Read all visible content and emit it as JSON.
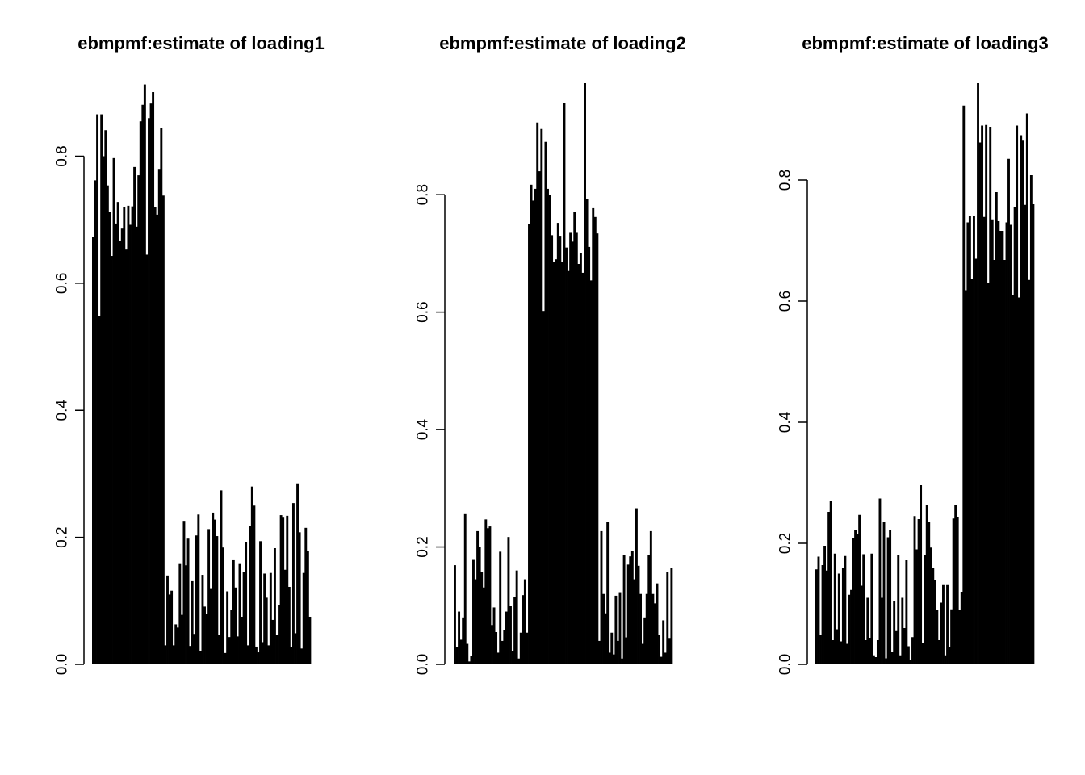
{
  "chart_data": [
    {
      "type": "bar",
      "title": "ebmpmf:estimate of loading1",
      "xlabel": "",
      "ylabel": "",
      "yticks": [
        "0.0",
        "0.2",
        "0.4",
        "0.6",
        "0.8"
      ],
      "ylim": [
        0,
        0.915
      ],
      "x_axis_drawn": false,
      "bar_color": "#000000",
      "values": [
        0.673,
        0.762,
        0.866,
        0.549,
        0.866,
        0.8,
        0.841,
        0.754,
        0.712,
        0.643,
        0.797,
        0.694,
        0.728,
        0.667,
        0.686,
        0.72,
        0.653,
        0.722,
        0.692,
        0.721,
        0.783,
        0.689,
        0.77,
        0.855,
        0.881,
        0.913,
        0.645,
        0.86,
        0.883,
        0.901,
        0.72,
        0.708,
        0.78,
        0.845,
        0.738,
        0.03,
        0.14,
        0.11,
        0.116,
        0.03,
        0.063,
        0.058,
        0.158,
        0.078,
        0.226,
        0.156,
        0.198,
        0.029,
        0.131,
        0.048,
        0.203,
        0.236,
        0.021,
        0.141,
        0.091,
        0.079,
        0.213,
        0.12,
        0.239,
        0.228,
        0.202,
        0.047,
        0.274,
        0.184,
        0.018,
        0.115,
        0.043,
        0.086,
        0.164,
        0.121,
        0.044,
        0.158,
        0.075,
        0.146,
        0.193,
        0.03,
        0.218,
        0.28,
        0.25,
        0.028,
        0.019,
        0.194,
        0.035,
        0.143,
        0.105,
        0.03,
        0.144,
        0.07,
        0.183,
        0.046,
        0.094,
        0.235,
        0.231,
        0.149,
        0.234,
        0.122,
        0.027,
        0.254,
        0.049,
        0.285,
        0.208,
        0.025,
        0.144,
        0.215,
        0.178,
        0.075
      ]
    },
    {
      "type": "bar",
      "title": "ebmpmf:estimate of loading2",
      "xlabel": "",
      "ylabel": "",
      "yticks": [
        "0.0",
        "0.2",
        "0.4",
        "0.6",
        "0.8"
      ],
      "ylim": [
        0,
        0.99
      ],
      "x_axis_drawn": false,
      "bar_color": "#000000",
      "values": [
        0.169,
        0.03,
        0.09,
        0.042,
        0.08,
        0.256,
        0.035,
        0.005,
        0.015,
        0.178,
        0.145,
        0.227,
        0.2,
        0.158,
        0.131,
        0.247,
        0.232,
        0.235,
        0.067,
        0.097,
        0.055,
        0.02,
        0.192,
        0.04,
        0.058,
        0.09,
        0.217,
        0.099,
        0.022,
        0.115,
        0.16,
        0.01,
        0.054,
        0.118,
        0.145,
        0.054,
        0.75,
        0.817,
        0.79,
        0.81,
        0.923,
        0.84,
        0.912,
        0.602,
        0.89,
        0.81,
        0.8,
        0.731,
        0.686,
        0.69,
        0.752,
        0.73,
        0.686,
        0.957,
        0.71,
        0.67,
        0.735,
        0.72,
        0.77,
        0.735,
        0.682,
        0.7,
        0.667,
        0.99,
        0.793,
        0.711,
        0.654,
        0.777,
        0.762,
        0.734,
        0.04,
        0.227,
        0.12,
        0.087,
        0.243,
        0.02,
        0.054,
        0.017,
        0.117,
        0.04,
        0.123,
        0.01,
        0.187,
        0.046,
        0.17,
        0.184,
        0.193,
        0.145,
        0.266,
        0.168,
        0.12,
        0.035,
        0.08,
        0.12,
        0.186,
        0.227,
        0.12,
        0.104,
        0.138,
        0.05,
        0.013,
        0.075,
        0.02,
        0.157,
        0.045,
        0.165
      ]
    },
    {
      "type": "bar",
      "title": "ebmpmf:estimate of loading3",
      "xlabel": "",
      "ylabel": "",
      "yticks": [
        "0.0",
        "0.2",
        "0.4",
        "0.6",
        "0.8"
      ],
      "ylim": [
        0,
        0.96
      ],
      "x_axis_drawn": false,
      "bar_color": "#000000",
      "values": [
        0.157,
        0.178,
        0.048,
        0.164,
        0.196,
        0.155,
        0.252,
        0.27,
        0.04,
        0.183,
        0.058,
        0.15,
        0.038,
        0.16,
        0.179,
        0.034,
        0.115,
        0.123,
        0.208,
        0.222,
        0.215,
        0.247,
        0.13,
        0.182,
        0.04,
        0.11,
        0.044,
        0.183,
        0.015,
        0.012,
        0.04,
        0.274,
        0.11,
        0.235,
        0.01,
        0.21,
        0.222,
        0.02,
        0.105,
        0.055,
        0.18,
        0.015,
        0.11,
        0.06,
        0.172,
        0.03,
        0.008,
        0.045,
        0.245,
        0.19,
        0.24,
        0.296,
        0.036,
        0.18,
        0.263,
        0.235,
        0.193,
        0.16,
        0.14,
        0.09,
        0.04,
        0.102,
        0.131,
        0.015,
        0.131,
        0.028,
        0.091,
        0.241,
        0.263,
        0.243,
        0.09,
        0.12,
        0.923,
        0.618,
        0.73,
        0.74,
        0.637,
        0.74,
        0.67,
        0.96,
        0.862,
        0.89,
        0.739,
        0.891,
        0.63,
        0.888,
        0.735,
        0.668,
        0.78,
        0.732,
        0.716,
        0.716,
        0.668,
        0.73,
        0.835,
        0.726,
        0.61,
        0.755,
        0.89,
        0.606,
        0.874,
        0.865,
        0.759,
        0.91,
        0.635,
        0.808,
        0.76
      ]
    }
  ]
}
